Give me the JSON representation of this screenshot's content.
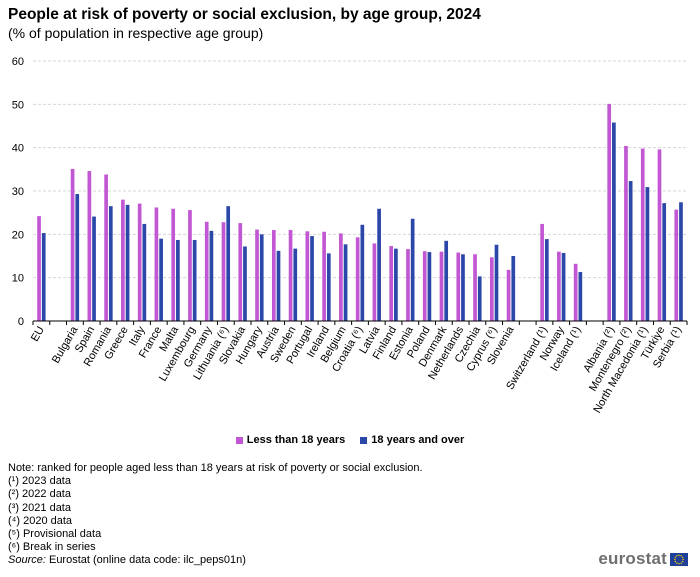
{
  "header": {
    "title": "People at risk of poverty or social exclusion, by age group, 2024",
    "subtitle": "(% of population in respective age group)"
  },
  "legend": {
    "under18": "Less than 18 years",
    "adult": "18 years and over"
  },
  "colors": {
    "under18": "#c157d2",
    "adult": "#2b47a8",
    "grid": "#d6d6d6",
    "axis": "#000000"
  },
  "notes": {
    "ranking": "Note: ranked for people aged less than 18 years at risk of poverty or social exclusion.",
    "footnotes": [
      "(¹) 2023 data",
      "(²) 2022 data",
      "(³) 2021 data",
      "(⁴) 2020 data",
      "(⁵) Provisional data",
      "(⁶) Break in series"
    ],
    "source_label": "Source:",
    "source_text": " Eurostat (online data code: ilc_peps01n)"
  },
  "logo": {
    "text": "eurostat",
    "icon": "eu-flag-icon"
  },
  "chart_data": {
    "type": "bar",
    "title": "People at risk of poverty or social exclusion, by age group, 2024",
    "subtitle": "(% of population in respective age group)",
    "xlabel": "",
    "ylabel": "",
    "ylim": [
      0,
      60
    ],
    "yticks": [
      0,
      10,
      20,
      30,
      40,
      50,
      60
    ],
    "grid": true,
    "legend_position": "bottom-center",
    "categories": [
      "EU",
      "Bulgaria",
      "Spain",
      "Romania",
      "Greece",
      "Italy",
      "France",
      "Malta",
      "Luxembourg",
      "Germany",
      "Lithuania (⁶)",
      "Slovakia",
      "Hungary",
      "Austria",
      "Sweden",
      "Portugal",
      "Ireland",
      "Belgium",
      "Croatia (⁶)",
      "Latvia",
      "Finland",
      "Estonia",
      "Poland",
      "Denmark",
      "Netherlands",
      "Czechia",
      "Cyprus (⁶)",
      "Slovenia",
      "Switzerland (¹)",
      "Norway",
      "Iceland (¹)",
      "Albania (²)",
      "Montenegro (²)",
      "North Macedonia (¹)",
      "Türkiye",
      "Serbia (¹)"
    ],
    "groups": [
      [
        "EU"
      ],
      [
        "Bulgaria",
        "Spain",
        "Romania",
        "Greece",
        "Italy",
        "France",
        "Malta",
        "Luxembourg",
        "Germany",
        "Lithuania (⁶)",
        "Slovakia",
        "Hungary",
        "Austria",
        "Sweden",
        "Portugal",
        "Ireland",
        "Belgium",
        "Croatia (⁶)",
        "Latvia",
        "Finland",
        "Estonia",
        "Poland",
        "Denmark",
        "Netherlands",
        "Czechia",
        "Cyprus (⁶)",
        "Slovenia"
      ],
      [
        "Switzerland (¹)",
        "Norway",
        "Iceland (¹)"
      ],
      [
        "Albania (²)",
        "Montenegro (²)",
        "North Macedonia (¹)",
        "Türkiye",
        "Serbia (¹)"
      ]
    ],
    "series": [
      {
        "name": "Less than 18 years",
        "values": [
          24.2,
          35.1,
          34.6,
          33.8,
          28.0,
          27.1,
          26.2,
          25.9,
          25.6,
          22.9,
          22.8,
          22.6,
          21.1,
          21.0,
          21.0,
          20.7,
          20.6,
          20.2,
          19.3,
          17.9,
          17.3,
          16.6,
          16.1,
          16.0,
          15.8,
          15.4,
          14.7,
          11.8,
          22.4,
          16.0,
          13.2,
          50.1,
          40.4,
          39.8,
          39.6,
          25.7
        ]
      },
      {
        "name": "18 years and over",
        "values": [
          20.3,
          29.3,
          24.1,
          26.5,
          26.8,
          22.4,
          19.0,
          18.7,
          18.7,
          20.8,
          26.5,
          17.2,
          20.0,
          16.2,
          16.7,
          19.6,
          15.6,
          17.7,
          22.2,
          25.9,
          16.7,
          23.6,
          15.9,
          18.5,
          15.4,
          10.3,
          17.6,
          15.0,
          18.9,
          15.7,
          11.3,
          45.8,
          32.3,
          30.9,
          27.2,
          27.4
        ]
      }
    ]
  }
}
